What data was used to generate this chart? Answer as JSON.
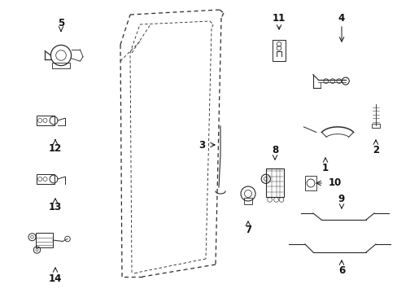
{
  "bg_color": "#ffffff",
  "line_color": "#2a2a2a",
  "text_color": "#111111",
  "figsize": [
    4.89,
    3.6
  ],
  "dpi": 100
}
